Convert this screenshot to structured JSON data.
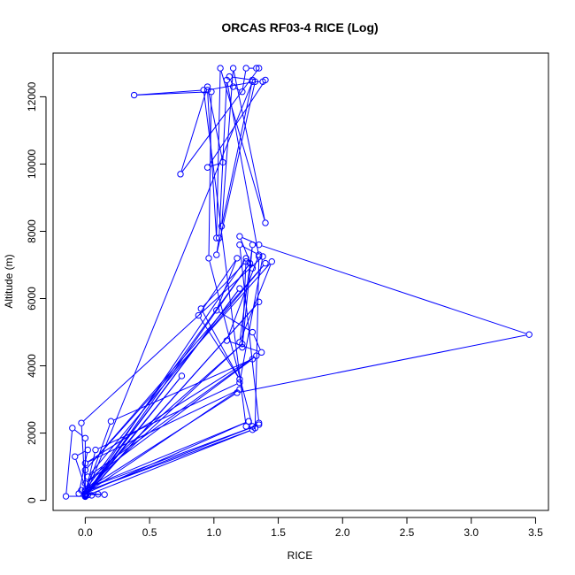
{
  "chart_data": {
    "type": "line",
    "title": "ORCAS RF03-4 RICE (Log)",
    "xlabel": "RICE",
    "ylabel": "Altitude (m)",
    "xlim": [
      -0.25,
      3.6
    ],
    "ylim": [
      -300,
      13300
    ],
    "x_ticks": [
      0.0,
      0.5,
      1.0,
      1.5,
      2.0,
      2.5,
      3.0,
      3.5
    ],
    "x_tick_labels": [
      "0.0",
      "0.5",
      "1.0",
      "1.5",
      "2.0",
      "2.5",
      "3.0",
      "3.5"
    ],
    "y_ticks": [
      0,
      2000,
      4000,
      6000,
      8000,
      10000,
      12000
    ],
    "y_tick_labels": [
      "0",
      "2000",
      "4000",
      "6000",
      "8000",
      "10000",
      "12000"
    ],
    "grid": false,
    "legend": "none",
    "series": [
      {
        "color": "#0000ff",
        "marker": "open-circle",
        "points": [
          [
            0.05,
            150
          ],
          [
            0.1,
            180
          ],
          [
            -0.05,
            200
          ],
          [
            0.02,
            1500
          ],
          [
            -0.08,
            1300
          ],
          [
            0.02,
            160
          ],
          [
            1.3,
            2100
          ],
          [
            0.0,
            250
          ],
          [
            1.35,
            2250
          ],
          [
            -0.03,
            300
          ],
          [
            1.27,
            2350
          ],
          [
            0.0,
            200
          ],
          [
            1.2,
            3300
          ],
          [
            0.0,
            1100
          ],
          [
            1.33,
            4300
          ],
          [
            0.02,
            700
          ],
          [
            1.4,
            7050
          ],
          [
            0.0,
            900
          ],
          [
            1.45,
            7100
          ],
          [
            1.2,
            4700
          ],
          [
            1.3,
            7600
          ],
          [
            1.22,
            4550
          ],
          [
            1.25,
            7200
          ],
          [
            0.0,
            150
          ],
          [
            1.2,
            6300
          ],
          [
            0.0,
            180
          ],
          [
            0.75,
            3700
          ],
          [
            0.0,
            130
          ],
          [
            1.35,
            5900
          ],
          [
            0.0,
            110
          ],
          [
            1.28,
            7050
          ],
          [
            0.0,
            300
          ],
          [
            -0.03,
            2300
          ],
          [
            1.38,
            7250
          ],
          [
            1.2,
            3500
          ],
          [
            0.08,
            1500
          ],
          [
            0.0,
            200
          ],
          [
            0.2,
            2350
          ],
          [
            1.3,
            4200
          ],
          [
            0.0,
            500
          ],
          [
            1.22,
            4650
          ],
          [
            0.0,
            300
          ],
          [
            1.18,
            3200
          ],
          [
            3.45,
            4930
          ],
          [
            1.35,
            7600
          ],
          [
            1.2,
            7850
          ],
          [
            1.3,
            6900
          ],
          [
            1.25,
            7100
          ],
          [
            0.9,
            5700
          ],
          [
            1.2,
            3600
          ],
          [
            0.88,
            5500
          ],
          [
            1.18,
            7200
          ],
          [
            1.02,
            5650
          ],
          [
            1.3,
            5000
          ],
          [
            1.37,
            4400
          ],
          [
            1.1,
            4750
          ],
          [
            1.35,
            7300
          ],
          [
            1.2,
            7600
          ],
          [
            1.35,
            2300
          ],
          [
            1.3,
            2200
          ],
          [
            0.96,
            7200
          ],
          [
            0.98,
            12150
          ],
          [
            0.38,
            12050
          ],
          [
            0.92,
            12200
          ],
          [
            1.25,
            2200
          ],
          [
            1.32,
            2150
          ],
          [
            1.35,
            7250
          ],
          [
            1.1,
            12500
          ],
          [
            1.04,
            7800
          ],
          [
            1.02,
            7300
          ],
          [
            1.32,
            12450
          ],
          [
            0.95,
            12200
          ],
          [
            1.02,
            7800
          ],
          [
            1.05,
            12850
          ],
          [
            1.4,
            8250
          ],
          [
            1.15,
            12850
          ],
          [
            1.06,
            8150
          ],
          [
            1.3,
            12500
          ],
          [
            1.12,
            12600
          ],
          [
            1.15,
            12300
          ],
          [
            1.22,
            12150
          ],
          [
            1.25,
            12850
          ],
          [
            1.33,
            12850
          ],
          [
            1.35,
            12850
          ],
          [
            0.74,
            9700
          ],
          [
            0.95,
            12300
          ],
          [
            1.07,
            10050
          ],
          [
            0.95,
            9900
          ],
          [
            1.4,
            12500
          ],
          [
            1.38,
            12450
          ],
          [
            1.3,
            12450
          ],
          [
            0.0,
            120
          ],
          [
            -0.15,
            120
          ],
          [
            -0.1,
            2150
          ],
          [
            0.0,
            1850
          ],
          [
            0.0,
            170
          ],
          [
            0.15,
            170
          ],
          [
            0.01,
            200
          ],
          [
            0.0,
            150
          ]
        ]
      }
    ]
  }
}
